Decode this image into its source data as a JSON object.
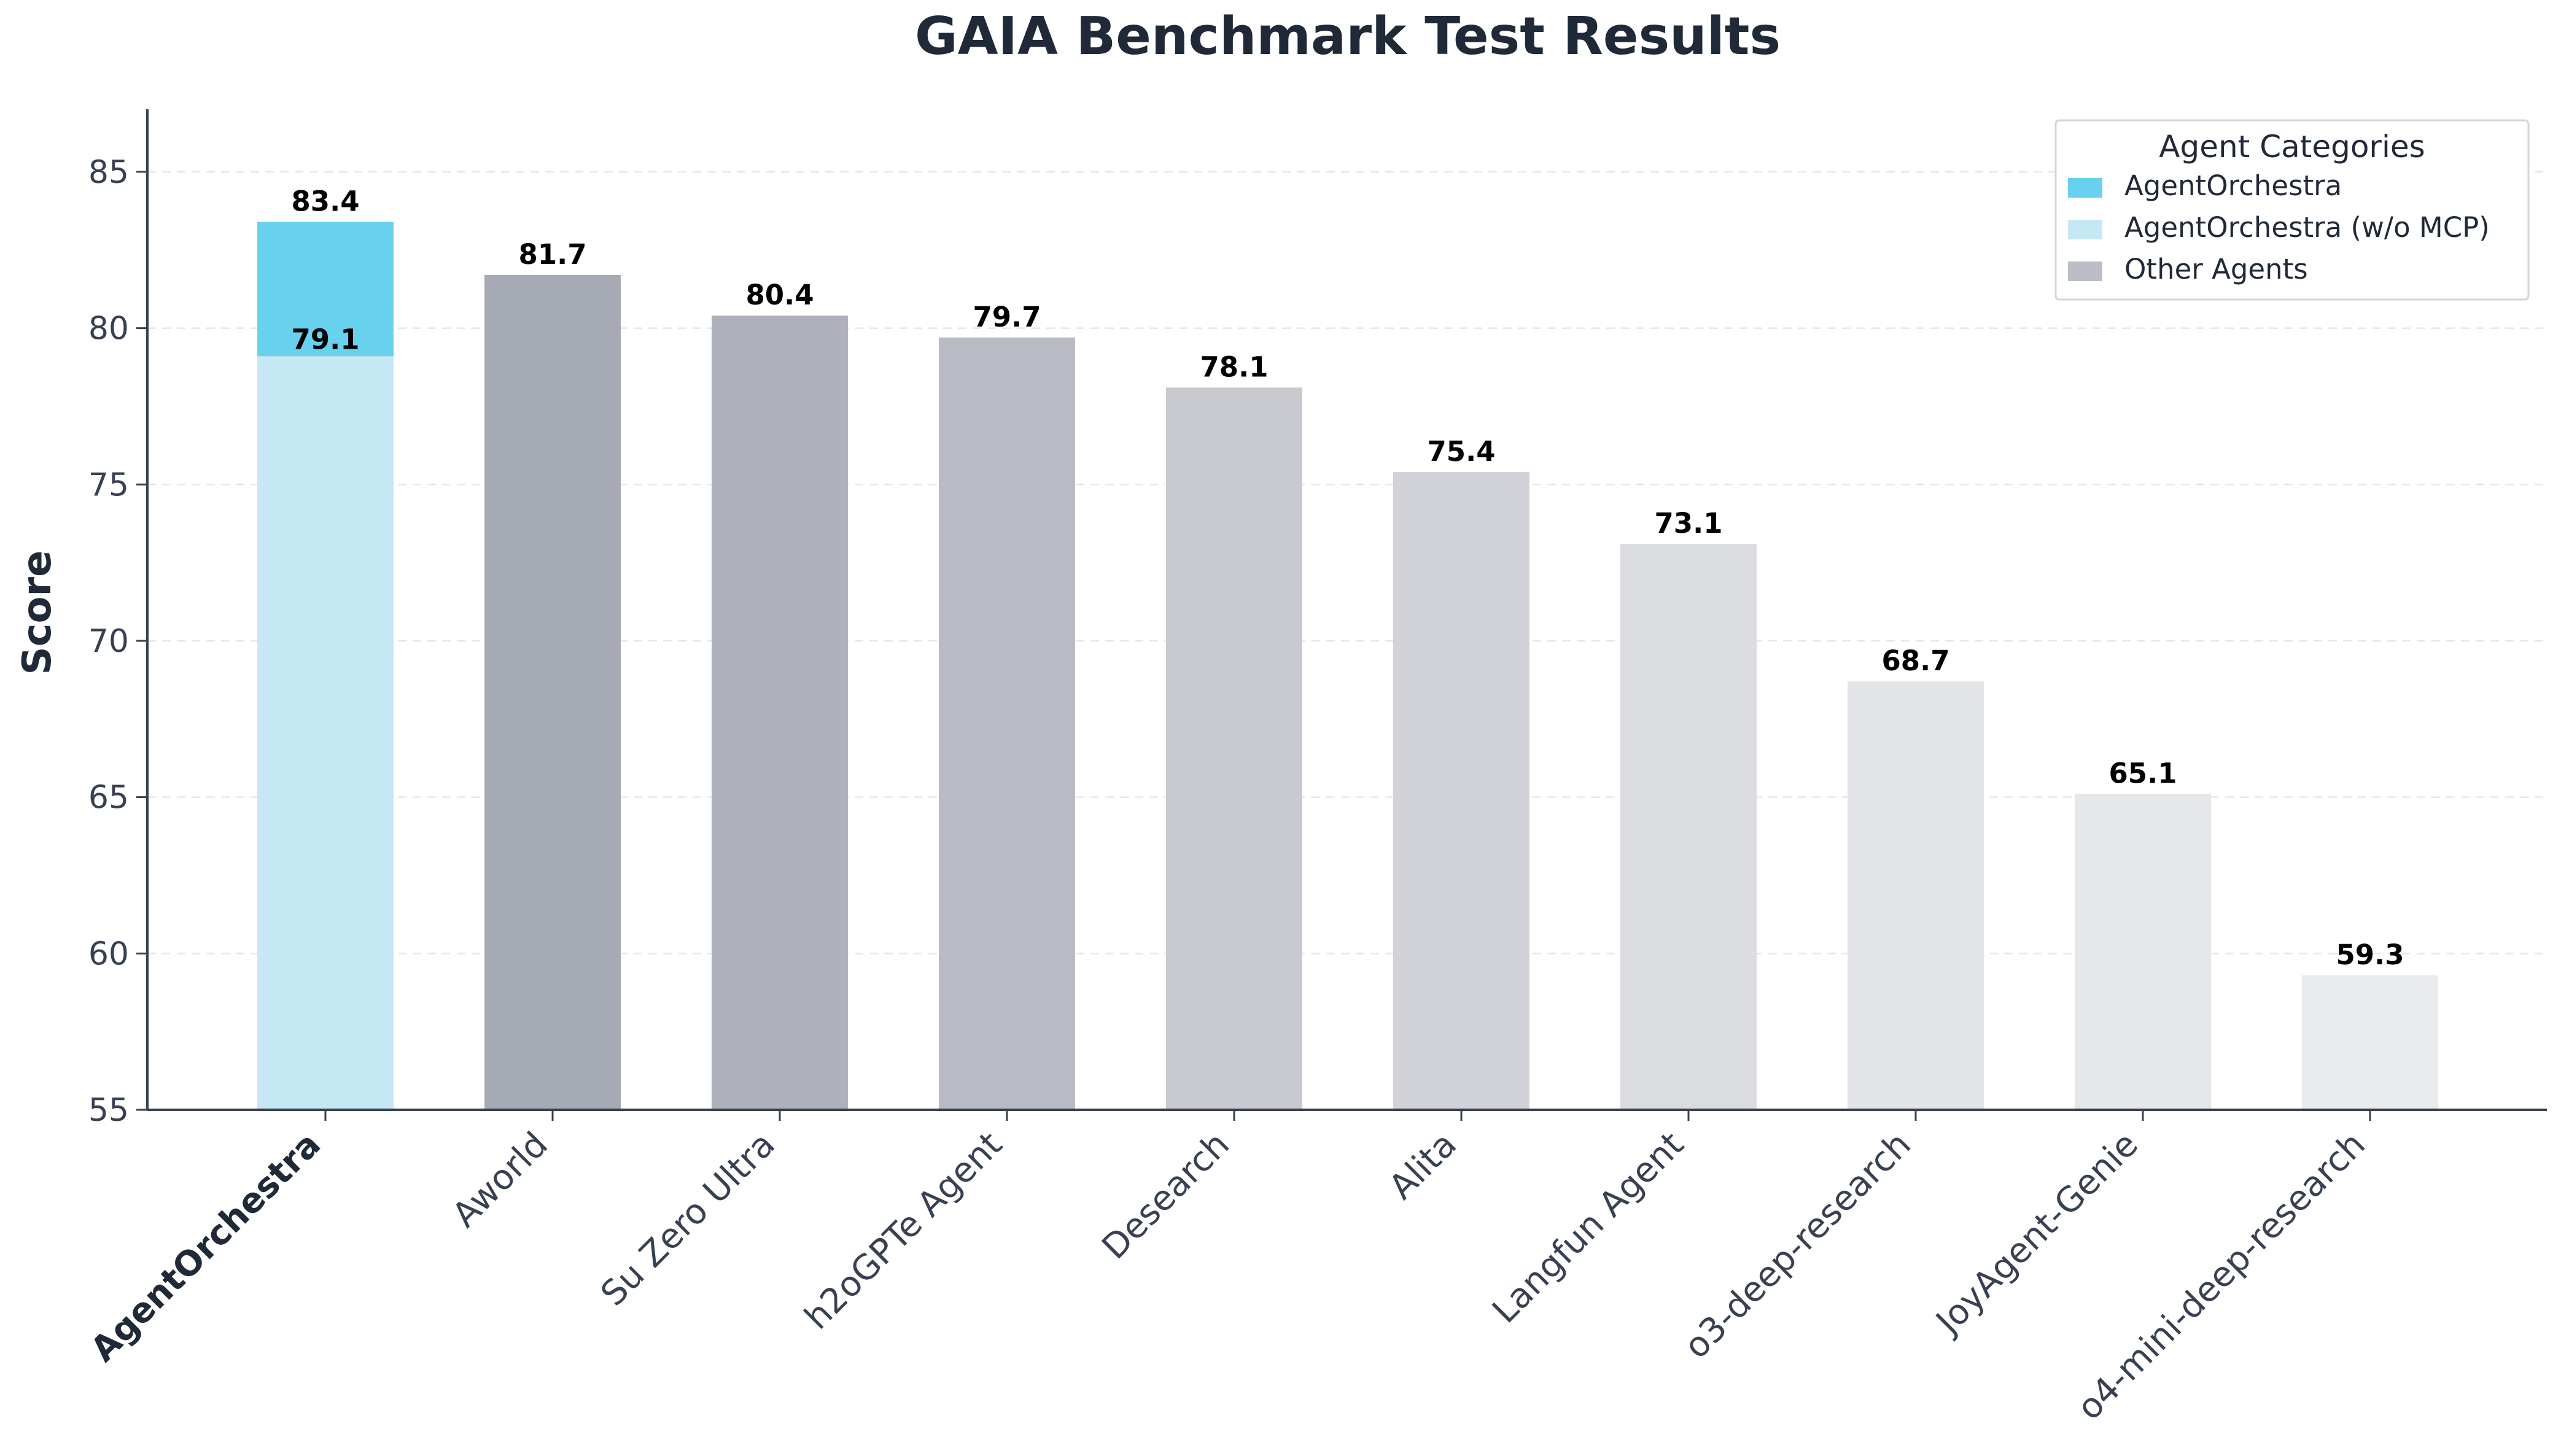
{
  "chart_data": {
    "type": "bar",
    "title": "GAIA Benchmark Test Results",
    "ylabel": "Score",
    "xlabel": "",
    "ylim": [
      55,
      87
    ],
    "yticks": [
      55,
      60,
      65,
      70,
      75,
      80,
      85
    ],
    "grid": "horizontal dashed",
    "legend_placement": "top-right",
    "legend_title": "Agent Categories",
    "categories": [
      "AgentOrchestra",
      "Aworld",
      "Su Zero Ultra",
      "h2oGPTe Agent",
      "Desearch",
      "Alita",
      "Langfun Agent",
      "o3-deep-research",
      "JoyAgent-Genie",
      "o4-mini-deep-research"
    ],
    "series": [
      {
        "name": "AgentOrchestra",
        "color": "#67d1ee",
        "values": [
          83.4,
          null,
          null,
          null,
          null,
          null,
          null,
          null,
          null,
          null
        ]
      },
      {
        "name": "AgentOrchestra (w/o MCP)",
        "color": "#c6e8f4",
        "values": [
          79.1,
          null,
          null,
          null,
          null,
          null,
          null,
          null,
          null,
          null
        ]
      },
      {
        "name": "Other Agents",
        "color": "#bbbec7",
        "values": [
          null,
          81.7,
          80.4,
          79.7,
          78.1,
          75.4,
          73.1,
          68.7,
          65.1,
          59.3
        ]
      }
    ],
    "data_labels": [
      {
        "category": "AgentOrchestra",
        "value": "83.4"
      },
      {
        "category": "AgentOrchestra",
        "value": "79.1"
      },
      {
        "category": "Aworld",
        "value": "81.7"
      },
      {
        "category": "Su Zero Ultra",
        "value": "80.4"
      },
      {
        "category": "h2oGPTe Agent",
        "value": "79.7"
      },
      {
        "category": "Desearch",
        "value": "78.1"
      },
      {
        "category": "Alita",
        "value": "75.4"
      },
      {
        "category": "Langfun Agent",
        "value": "73.1"
      },
      {
        "category": "o3-deep-research",
        "value": "68.7"
      },
      {
        "category": "JoyAgent-Genie",
        "value": "65.1"
      },
      {
        "category": "o4-mini-deep-research",
        "value": "59.3"
      }
    ],
    "other_bar_colors": [
      "#a5aab5",
      "#aeb1bb",
      "#b8bbc4",
      "#c8cad0",
      "#d1d3d8",
      "#dbdcdf",
      "#e3e4e7",
      "#e6e7ea",
      "#e9eaec"
    ]
  }
}
